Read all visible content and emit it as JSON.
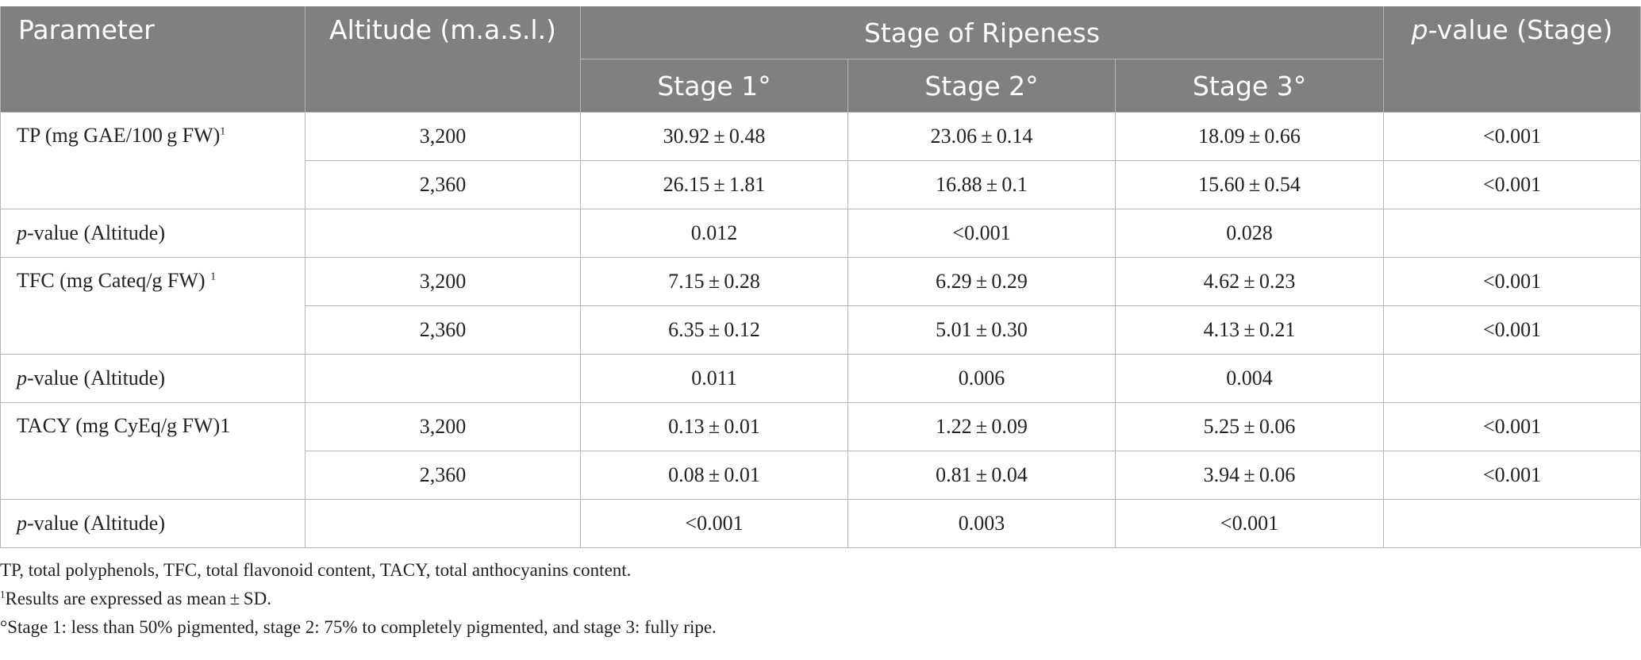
{
  "header": {
    "parameter": "Parameter",
    "altitude": "Altitude (m.a.s.l.)",
    "stage_group": "Stage of Ripeness",
    "pvalue_stage_italic": "p",
    "pvalue_stage_rest": "-value (Stage)",
    "stages": [
      "Stage 1°",
      "Stage 2°",
      "Stage 3°"
    ]
  },
  "pvalue_altitude_label": {
    "italic": "p",
    "rest": "-value (Altitude)"
  },
  "groups": [
    {
      "parameter": "TP (mg GAE/100 g FW)",
      "parameter_sup": "1",
      "rows": [
        {
          "altitude": "3,200",
          "s1": "30.92 ± 0.48",
          "s2": "23.06 ± 0.14",
          "s3": "18.09 ± 0.66",
          "p": "<0.001"
        },
        {
          "altitude": "2,360",
          "s1": "26.15 ± 1.81",
          "s2": "16.88 ± 0.1",
          "s3": "15.60 ± 0.54",
          "p": "<0.001"
        }
      ],
      "p_altitude": {
        "s1": "0.012",
        "s2": "<0.001",
        "s3": "0.028"
      }
    },
    {
      "parameter": "TFC (mg Cateq/g FW) ",
      "parameter_sup": "1",
      "rows": [
        {
          "altitude": "3,200",
          "s1": "7.15 ± 0.28",
          "s2": "6.29 ± 0.29",
          "s3": "4.62 ± 0.23",
          "p": "<0.001"
        },
        {
          "altitude": "2,360",
          "s1": "6.35 ± 0.12",
          "s2": "5.01 ± 0.30",
          "s3": "4.13 ± 0.21",
          "p": "<0.001"
        }
      ],
      "p_altitude": {
        "s1": "0.011",
        "s2": "0.006",
        "s3": "0.004"
      }
    },
    {
      "parameter": "TACY (mg CyEq/g FW)1",
      "parameter_sup": "",
      "rows": [
        {
          "altitude": "3,200",
          "s1": "0.13 ± 0.01",
          "s2": "1.22 ± 0.09",
          "s3": "5.25 ± 0.06",
          "p": "<0.001"
        },
        {
          "altitude": "2,360",
          "s1": "0.08 ± 0.01",
          "s2": "0.81 ± 0.04",
          "s3": "3.94 ± 0.06",
          "p": "<0.001"
        }
      ],
      "p_altitude": {
        "s1": "<0.001",
        "s2": "0.003",
        "s3": "<0.001"
      }
    }
  ],
  "footnotes": {
    "abbrev": "TP, total polyphenols, TFC, total flavonoid content, TACY, total anthocyanins content.",
    "note1_sup": "1",
    "note1_text": "Results are expressed as mean ± SD.",
    "note2": "°Stage 1: less than 50% pigmented, stage 2: 75% to completely pigmented, and stage 3: fully ripe."
  }
}
